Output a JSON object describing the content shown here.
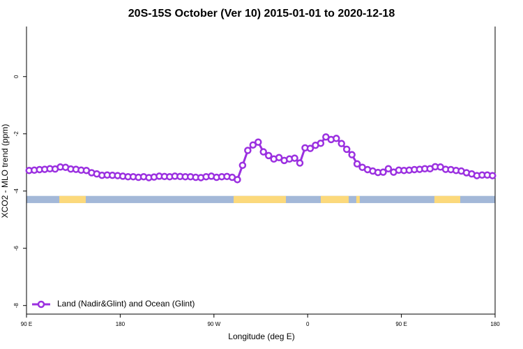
{
  "chart_data": {
    "type": "line",
    "title": "20S-15S October (Ver 10)   2015-01-01 to 2020-12-18",
    "xlabel": "Longitude (deg E)",
    "ylabel": "XCO2 - MLO trend (ppm)",
    "xlim": [
      90,
      540
    ],
    "xticks": [
      {
        "value": 90,
        "label": "90 E"
      },
      180,
      {
        "value": 270,
        "label": "90 W"
      },
      {
        "value": 360,
        "label": "0"
      },
      {
        "value": 450,
        "label": "90 E"
      },
      {
        "value": 540,
        "label": "180"
      }
    ],
    "ylim": [
      -8.3,
      1.75
    ],
    "yticks": [
      0,
      -2,
      -4,
      -6,
      -8
    ],
    "legend": "bottom left",
    "series": [
      {
        "name": "Land (Nadir&Glint) and Ocean (Glint)",
        "color": "#9b30e0",
        "x": [
          92.5,
          97.5,
          102.5,
          107.5,
          112.5,
          117.5,
          122.5,
          127.5,
          132.5,
          137.5,
          142.5,
          147.5,
          152.5,
          157.5,
          162.5,
          167.5,
          172.5,
          177.5,
          182.5,
          187.5,
          192.5,
          197.5,
          202.5,
          207.5,
          212.5,
          217.5,
          222.5,
          227.5,
          232.5,
          237.5,
          242.5,
          247.5,
          252.5,
          257.5,
          262.5,
          267.5,
          272.5,
          277.5,
          282.5,
          287.5,
          292.5,
          297.5,
          302.5,
          307.5,
          312.5,
          317.5,
          322.5,
          327.5,
          332.5,
          337.5,
          342.5,
          347.5,
          352.5,
          357.5,
          362.5,
          367.5,
          372.5,
          377.5,
          382.5,
          387.5,
          392.5,
          397.5,
          402.5,
          407.5,
          412.5,
          417.5,
          422.5,
          427.5,
          432.5,
          437.5,
          442.5,
          447.5,
          452.5,
          457.5,
          462.5,
          467.5,
          472.5,
          477.5,
          482.5,
          487.5,
          492.5,
          497.5,
          502.5,
          507.5,
          512.5,
          517.5,
          522.5,
          527.5,
          532.5,
          537.5
        ],
        "values": [
          -3.28,
          -3.27,
          -3.25,
          -3.24,
          -3.22,
          -3.23,
          -3.16,
          -3.17,
          -3.23,
          -3.24,
          -3.27,
          -3.28,
          -3.36,
          -3.4,
          -3.45,
          -3.44,
          -3.45,
          -3.46,
          -3.48,
          -3.5,
          -3.5,
          -3.52,
          -3.5,
          -3.53,
          -3.51,
          -3.48,
          -3.49,
          -3.5,
          -3.48,
          -3.49,
          -3.5,
          -3.5,
          -3.52,
          -3.53,
          -3.5,
          -3.48,
          -3.52,
          -3.5,
          -3.49,
          -3.52,
          -3.6,
          -3.1,
          -2.58,
          -2.39,
          -2.29,
          -2.63,
          -2.76,
          -2.88,
          -2.83,
          -2.93,
          -2.88,
          -2.85,
          -3.02,
          -2.49,
          -2.51,
          -2.4,
          -2.33,
          -2.11,
          -2.2,
          -2.16,
          -2.34,
          -2.54,
          -2.73,
          -3.05,
          -3.17,
          -3.25,
          -3.3,
          -3.35,
          -3.34,
          -3.22,
          -3.34,
          -3.27,
          -3.28,
          -3.27,
          -3.25,
          -3.24,
          -3.22,
          -3.22,
          -3.15,
          -3.16,
          -3.24,
          -3.25,
          -3.28,
          -3.3,
          -3.36,
          -3.4,
          -3.46,
          -3.44,
          -3.44,
          -3.46
        ]
      }
    ],
    "surface_band": {
      "ylim": [
        -4.42,
        -4.17
      ],
      "ocean_color": "#a3b8d8",
      "land_color": "#fcd97b",
      "land_ranges": [
        [
          121.5,
          146.9
        ],
        [
          288.9,
          339.1
        ],
        [
          372.6,
          399.4
        ],
        [
          406.7,
          410
        ],
        [
          481.7,
          506.5
        ]
      ]
    }
  }
}
